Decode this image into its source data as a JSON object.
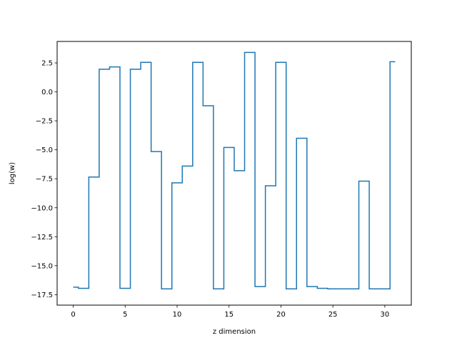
{
  "chart_data": {
    "type": "line",
    "drawstyle": "steps-mid",
    "title": "",
    "xlabel": "z dimension",
    "ylabel": "log(w)",
    "xlim": [
      -1.55,
      32.55
    ],
    "ylim": [
      -18.4,
      4.35
    ],
    "grid": false,
    "x_ticks": [
      0,
      5,
      10,
      15,
      20,
      25,
      30
    ],
    "x_tick_labels": [
      "0",
      "5",
      "10",
      "15",
      "20",
      "25",
      "30"
    ],
    "y_ticks": [
      2.5,
      0.0,
      -2.5,
      -5.0,
      -7.5,
      -10.0,
      -12.5,
      -15.0,
      -17.5
    ],
    "y_tick_labels": [
      "2.5",
      "0.0",
      "−2.5",
      "−5.0",
      "−7.5",
      "−10.0",
      "−12.5",
      "−15.0",
      "−17.5"
    ],
    "series": [
      {
        "color": "#1f77b4",
        "x": [
          0,
          1,
          2,
          3,
          4,
          5,
          6,
          7,
          8,
          9,
          10,
          11,
          12,
          13,
          14,
          15,
          16,
          17,
          18,
          19,
          20,
          21,
          22,
          23,
          24,
          25,
          26,
          27,
          28,
          29,
          30,
          31
        ],
        "values": [
          -16.85,
          -16.95,
          -7.35,
          1.95,
          2.15,
          -16.95,
          1.95,
          2.55,
          -5.15,
          -17.0,
          -7.85,
          -6.4,
          2.55,
          -1.2,
          -17.0,
          -4.8,
          -6.8,
          3.4,
          -16.8,
          -8.1,
          2.55,
          -17.0,
          -4.0,
          -16.8,
          -16.95,
          -17.0,
          -17.0,
          -17.0,
          -7.7,
          -17.0,
          -17.0,
          2.6
        ]
      }
    ]
  }
}
